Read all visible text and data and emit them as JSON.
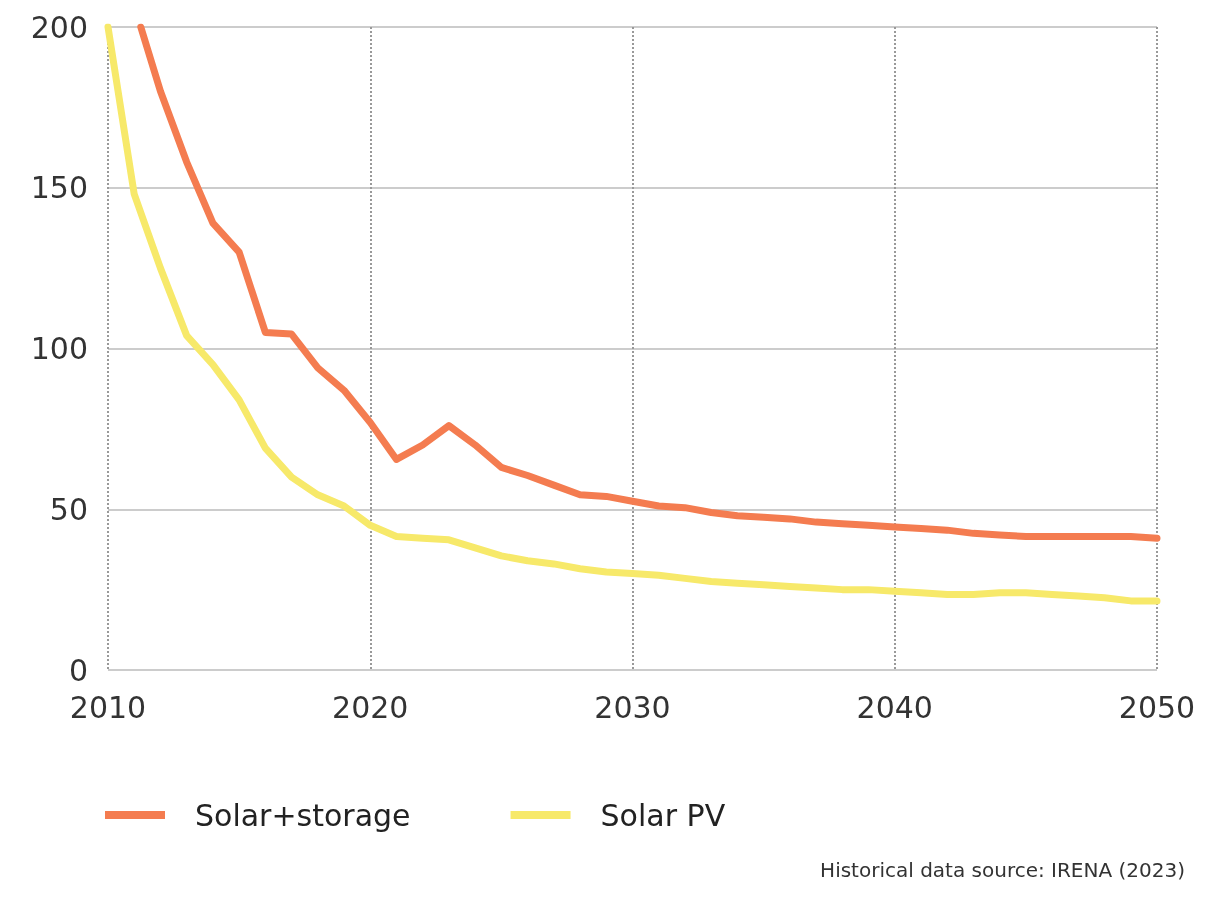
{
  "chart_data": {
    "type": "line",
    "series": [
      {
        "name": "Solar+storage",
        "color": "#f47c50",
        "x": [
          2011.25,
          2012,
          2013,
          2014,
          2015,
          2016,
          2017,
          2018,
          2019,
          2020,
          2021,
          2022,
          2023,
          2024,
          2025,
          2026,
          2027,
          2028,
          2029,
          2030,
          2031,
          2032,
          2033,
          2034,
          2035,
          2036,
          2037,
          2038,
          2039,
          2040,
          2041,
          2042,
          2043,
          2044,
          2045,
          2046,
          2047,
          2048,
          2049,
          2050
        ],
        "values": [
          200,
          180,
          158,
          139,
          130,
          105,
          104.5,
          94,
          87,
          77,
          65.5,
          70,
          76,
          70,
          63,
          60.5,
          57.5,
          54.5,
          54,
          52.5,
          51,
          50.5,
          49,
          48,
          47.5,
          47,
          46,
          45.5,
          45,
          44.5,
          44,
          43.5,
          42.5,
          42,
          41.5,
          41.5,
          41.5,
          41.5,
          41.5,
          41
        ]
      },
      {
        "name": "Solar PV",
        "color": "#f7e96a",
        "x": [
          2010,
          2011,
          2012,
          2013,
          2014,
          2015,
          2016,
          2017,
          2018,
          2019,
          2020,
          2021,
          2022,
          2023,
          2024,
          2025,
          2026,
          2027,
          2028,
          2029,
          2030,
          2031,
          2032,
          2033,
          2034,
          2035,
          2036,
          2037,
          2038,
          2039,
          2040,
          2041,
          2042,
          2043,
          2044,
          2045,
          2046,
          2047,
          2048,
          2049,
          2050
        ],
        "values": [
          200,
          148,
          125,
          104,
          95,
          84,
          69,
          60,
          54.5,
          51,
          45,
          41.5,
          41,
          40.5,
          38,
          35.5,
          34,
          33,
          31.5,
          30.5,
          30,
          29.5,
          28.5,
          27.5,
          27,
          26.5,
          26,
          25.5,
          25,
          25,
          24.5,
          24,
          23.5,
          23.5,
          24,
          24,
          23.5,
          23,
          22.5,
          21.5,
          21.5
        ]
      }
    ],
    "xlim": [
      2010,
      2050
    ],
    "xticks": [
      2010,
      2020,
      2030,
      2040,
      2050
    ],
    "ylim": [
      0,
      200
    ],
    "yticks": [
      0,
      50,
      100,
      150,
      200
    ],
    "grid": true,
    "legend": "bottom left",
    "marker": "none",
    "line_style": "solid",
    "annotations": [
      "Historical data source: IRENA (2023)"
    ]
  }
}
